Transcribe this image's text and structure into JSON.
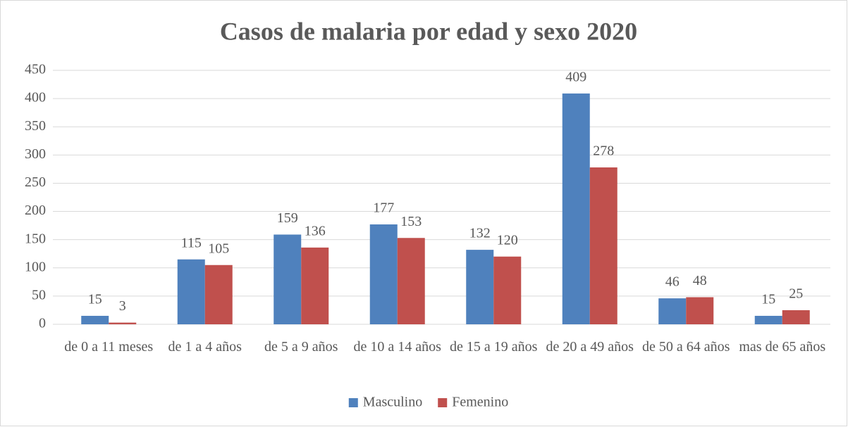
{
  "chart_data": {
    "type": "bar",
    "title": "Casos de malaria por edad y sexo 2020",
    "categories": [
      "de 0 a 11 meses",
      "de 1 a 4 años",
      "de 5 a 9 años",
      "de 10 a 14 años",
      "de 15 a 19 años",
      "de 20 a 49 años",
      "de 50 a 64 años",
      "mas de 65 años"
    ],
    "series": [
      {
        "name": "Masculino",
        "color": "#4f81bd",
        "values": [
          15,
          115,
          159,
          177,
          132,
          409,
          46,
          15
        ]
      },
      {
        "name": "Femenino",
        "color": "#c0504d",
        "values": [
          3,
          105,
          136,
          153,
          120,
          278,
          48,
          25
        ]
      }
    ],
    "ylim": [
      0,
      450
    ],
    "yticks": [
      0,
      50,
      100,
      150,
      200,
      250,
      300,
      350,
      400,
      450
    ],
    "grid": true,
    "legend": "bottom"
  }
}
